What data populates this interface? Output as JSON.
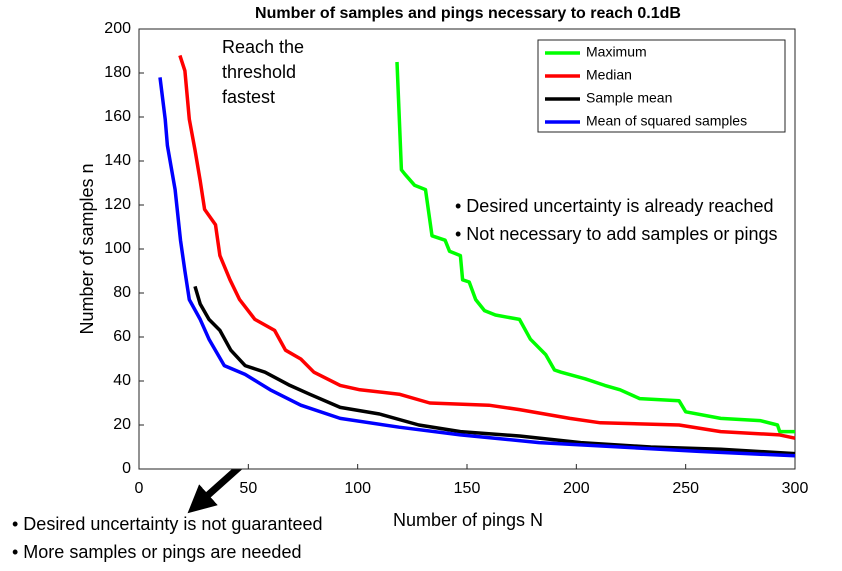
{
  "chart_data": {
    "type": "line",
    "title": "Number of samples and pings necessary to reach 0.1dB",
    "x_label": "Number of pings N",
    "y_label": "Number of samples n",
    "xlim": [
      0,
      300
    ],
    "ylim": [
      0,
      200
    ],
    "xticks": [
      0,
      50,
      100,
      150,
      200,
      250,
      300
    ],
    "yticks": [
      0,
      20,
      40,
      60,
      80,
      100,
      120,
      140,
      160,
      180,
      200
    ],
    "grid": false,
    "legend": "upper right",
    "series": [
      {
        "name": "Maximum",
        "color": "#00ff00",
        "x": [
          118,
          120,
          121.6,
          126,
          131,
          134,
          140,
          142,
          147,
          148,
          151,
          154,
          158,
          163,
          174,
          179,
          186,
          190,
          193,
          204,
          213,
          220,
          229,
          247,
          250,
          266,
          284,
          292,
          293,
          300
        ],
        "values": [
          185,
          136,
          134,
          129,
          127,
          106,
          104,
          99,
          97,
          86,
          85,
          77,
          72,
          70,
          68,
          59,
          52,
          45,
          44,
          41,
          38,
          36,
          32,
          31,
          26,
          23,
          22,
          20,
          17,
          17
        ]
      },
      {
        "name": "Median",
        "color": "#ff0000",
        "x": [
          18.7,
          21,
          23,
          25.6,
          28,
          30,
          35,
          37,
          41.6,
          46,
          53,
          62,
          67,
          74,
          80,
          92,
          101,
          119,
          133,
          160,
          174,
          197,
          211,
          247,
          266,
          293,
          300
        ],
        "values": [
          188,
          181,
          159,
          145,
          131,
          118,
          111,
          97,
          86,
          77,
          68,
          63,
          54,
          50,
          44,
          38,
          36,
          34,
          30,
          29,
          27,
          23,
          21,
          20,
          17,
          15.5,
          14
        ]
      },
      {
        "name": "Sample mean",
        "color": "#000000",
        "x": [
          25.6,
          28,
          32,
          37,
          42,
          48.5,
          57.6,
          69,
          78,
          92,
          110,
          128,
          147,
          174,
          202,
          234,
          266,
          300
        ],
        "values": [
          83,
          75,
          68,
          63,
          54,
          47,
          44,
          38,
          34,
          28,
          25,
          20,
          17,
          15,
          12,
          10,
          9,
          7
        ]
      },
      {
        "name": "Mean of squared samples",
        "color": "#0000ff",
        "x": [
          9.6,
          12,
          13,
          16.5,
          19,
          21,
          23,
          28,
          32,
          39,
          48.5,
          60,
          74,
          92,
          119,
          147,
          183,
          220,
          256,
          300
        ],
        "values": [
          178,
          159,
          147,
          127,
          104,
          90,
          77,
          68,
          59,
          47,
          43,
          36,
          29,
          23,
          19,
          15.5,
          12,
          10,
          8,
          6
        ]
      }
    ],
    "annotations": [
      {
        "lines": [
          "Reach the",
          "threshold",
          "fastest"
        ]
      },
      {
        "lines": [
          "• Desired uncertainty is already reached",
          "• Not necessary to add samples or pings"
        ]
      },
      {
        "lines": [
          "• Desired uncertainty is not guaranteed",
          "• More samples or pings are needed"
        ]
      }
    ]
  }
}
